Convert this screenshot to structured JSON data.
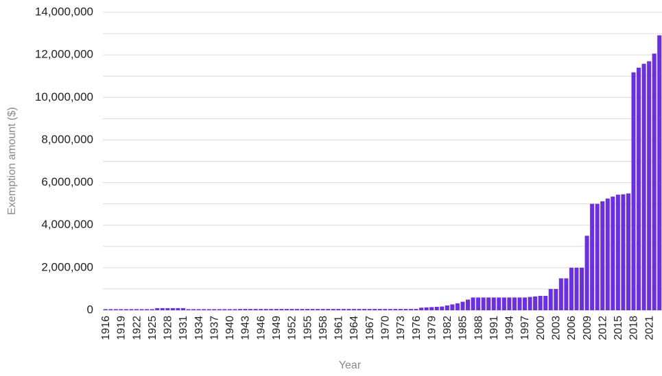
{
  "chart_data": {
    "type": "bar",
    "xlabel": "Year",
    "ylabel": "Exemption amount ($)",
    "categories": [
      "1916",
      null,
      null,
      "1919",
      null,
      null,
      "1922",
      null,
      null,
      "1925",
      null,
      null,
      "1928",
      null,
      null,
      "1931",
      null,
      null,
      "1934",
      null,
      null,
      "1937",
      null,
      null,
      "1940",
      null,
      null,
      "1943",
      null,
      null,
      "1946",
      null,
      null,
      "1949",
      null,
      null,
      "1952",
      null,
      null,
      "1955",
      null,
      null,
      "1958",
      null,
      null,
      "1961",
      null,
      null,
      "1964",
      null,
      null,
      "1967",
      null,
      null,
      "1970",
      null,
      null,
      "1973",
      null,
      null,
      "1976",
      null,
      null,
      "1979",
      null,
      null,
      "1982",
      null,
      null,
      "1985",
      null,
      null,
      "1988",
      null,
      null,
      "1991",
      null,
      null,
      "1994",
      null,
      null,
      "1997",
      null,
      null,
      "2000",
      null,
      null,
      "2003",
      null,
      null,
      "2006",
      null,
      null,
      "2009",
      null,
      null,
      "2012",
      null,
      null,
      "2015",
      null,
      null,
      "2018",
      null,
      null,
      "2021",
      null,
      null
    ],
    "values": [
      50000,
      50000,
      50000,
      50000,
      50000,
      50000,
      50000,
      50000,
      50000,
      50000,
      100000,
      100000,
      100000,
      100000,
      100000,
      100000,
      50000,
      50000,
      50000,
      50000,
      50000,
      50000,
      50000,
      50000,
      50000,
      50000,
      60000,
      60000,
      60000,
      60000,
      60000,
      60000,
      60000,
      60000,
      60000,
      60000,
      60000,
      60000,
      60000,
      60000,
      60000,
      60000,
      60000,
      60000,
      60000,
      60000,
      60000,
      60000,
      60000,
      60000,
      60000,
      60000,
      60000,
      60000,
      60000,
      60000,
      60000,
      60000,
      60000,
      60000,
      60000,
      120000,
      134000,
      147000,
      161000,
      175000,
      225000,
      275000,
      325000,
      400000,
      500000,
      600000,
      600000,
      600000,
      600000,
      600000,
      600000,
      600000,
      600000,
      600000,
      600000,
      600000,
      625000,
      650000,
      675000,
      675000,
      1000000,
      1000000,
      1500000,
      1500000,
      2000000,
      2000000,
      2000000,
      3500000,
      5000000,
      5000000,
      5120000,
      5250000,
      5340000,
      5430000,
      5450000,
      5490000,
      11180000,
      11400000,
      11580000,
      11700000,
      12060000,
      12920000
    ],
    "color": "#6a2ee6",
    "ylim": [
      0,
      14000000
    ],
    "yticks": [
      0,
      {
        "value": 2000000,
        "label": "2,000,000"
      },
      {
        "value": 4000000,
        "label": "4,000,000"
      },
      {
        "value": 6000000,
        "label": "6,000,000"
      },
      {
        "value": 8000000,
        "label": "8,000,000"
      },
      {
        "value": 10000000,
        "label": "10,000,000"
      },
      {
        "value": 12000000,
        "label": "12,000,000"
      },
      {
        "value": 14000000,
        "label": "14,000,000"
      }
    ],
    "yminor": [
      1000000,
      3000000,
      5000000,
      7000000,
      9000000,
      11000000,
      13000000
    ],
    "grid": true
  }
}
